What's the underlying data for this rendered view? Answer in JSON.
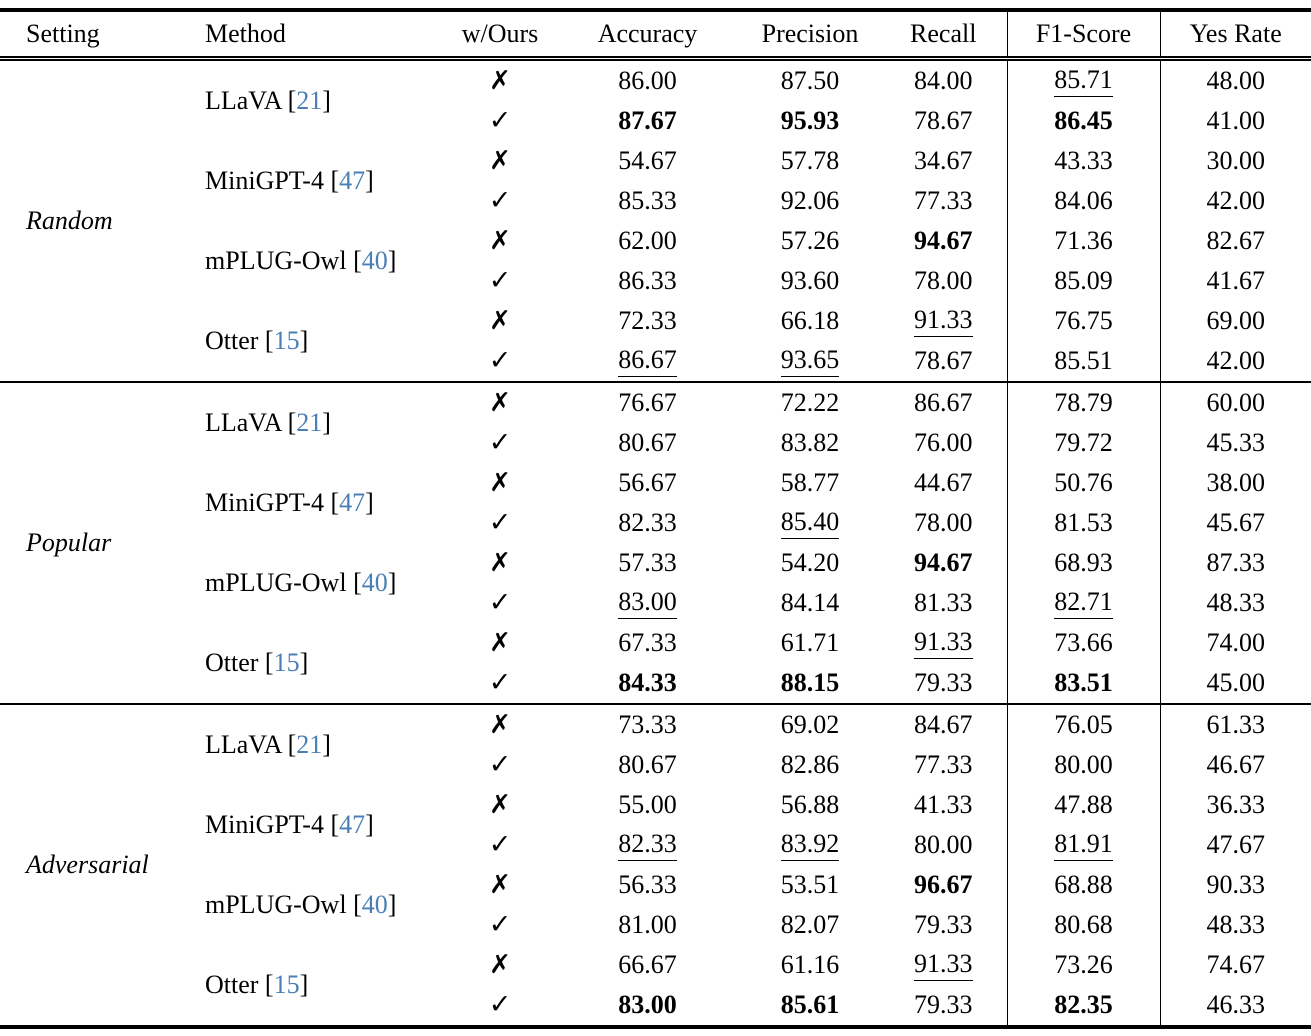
{
  "columns": [
    "Setting",
    "Method",
    "w/Ours",
    "Accuracy",
    "Precision",
    "Recall",
    "F1-Score",
    "Yes Rate"
  ],
  "marks": {
    "cross": "✗",
    "check": "✓"
  },
  "citation_open": "[",
  "citation_close": "]",
  "colors": {
    "citation": "#4a7fb5"
  },
  "sections": [
    {
      "setting": "Random",
      "methods": [
        {
          "name": "LLaVA",
          "cite": "21",
          "rows": [
            {
              "mark": "cross",
              "values": [
                {
                  "v": "86.00"
                },
                {
                  "v": "87.50"
                },
                {
                  "v": "84.00"
                },
                {
                  "v": "85.71",
                  "u": true
                },
                {
                  "v": "48.00"
                }
              ]
            },
            {
              "mark": "check",
              "values": [
                {
                  "v": "87.67",
                  "b": true
                },
                {
                  "v": "95.93",
                  "b": true
                },
                {
                  "v": "78.67"
                },
                {
                  "v": "86.45",
                  "b": true
                },
                {
                  "v": "41.00"
                }
              ]
            }
          ]
        },
        {
          "name": "MiniGPT-4",
          "cite": "47",
          "rows": [
            {
              "mark": "cross",
              "values": [
                {
                  "v": "54.67"
                },
                {
                  "v": "57.78"
                },
                {
                  "v": "34.67"
                },
                {
                  "v": "43.33"
                },
                {
                  "v": "30.00"
                }
              ]
            },
            {
              "mark": "check",
              "values": [
                {
                  "v": "85.33"
                },
                {
                  "v": "92.06"
                },
                {
                  "v": "77.33"
                },
                {
                  "v": "84.06"
                },
                {
                  "v": "42.00"
                }
              ]
            }
          ]
        },
        {
          "name": "mPLUG-Owl",
          "cite": "40",
          "rows": [
            {
              "mark": "cross",
              "values": [
                {
                  "v": "62.00"
                },
                {
                  "v": "57.26"
                },
                {
                  "v": "94.67",
                  "b": true
                },
                {
                  "v": "71.36"
                },
                {
                  "v": "82.67"
                }
              ]
            },
            {
              "mark": "check",
              "values": [
                {
                  "v": "86.33"
                },
                {
                  "v": "93.60"
                },
                {
                  "v": "78.00"
                },
                {
                  "v": "85.09"
                },
                {
                  "v": "41.67"
                }
              ]
            }
          ]
        },
        {
          "name": "Otter",
          "cite": "15",
          "rows": [
            {
              "mark": "cross",
              "values": [
                {
                  "v": "72.33"
                },
                {
                  "v": "66.18"
                },
                {
                  "v": "91.33",
                  "u": true
                },
                {
                  "v": "76.75"
                },
                {
                  "v": "69.00"
                }
              ]
            },
            {
              "mark": "check",
              "values": [
                {
                  "v": "86.67",
                  "u": true
                },
                {
                  "v": "93.65",
                  "u": true
                },
                {
                  "v": "78.67"
                },
                {
                  "v": "85.51"
                },
                {
                  "v": "42.00"
                }
              ]
            }
          ]
        }
      ]
    },
    {
      "setting": "Popular",
      "methods": [
        {
          "name": "LLaVA",
          "cite": "21",
          "rows": [
            {
              "mark": "cross",
              "values": [
                {
                  "v": "76.67"
                },
                {
                  "v": "72.22"
                },
                {
                  "v": "86.67"
                },
                {
                  "v": "78.79"
                },
                {
                  "v": "60.00"
                }
              ]
            },
            {
              "mark": "check",
              "values": [
                {
                  "v": "80.67"
                },
                {
                  "v": "83.82"
                },
                {
                  "v": "76.00"
                },
                {
                  "v": "79.72"
                },
                {
                  "v": "45.33"
                }
              ]
            }
          ]
        },
        {
          "name": "MiniGPT-4",
          "cite": "47",
          "rows": [
            {
              "mark": "cross",
              "values": [
                {
                  "v": "56.67"
                },
                {
                  "v": "58.77"
                },
                {
                  "v": "44.67"
                },
                {
                  "v": "50.76"
                },
                {
                  "v": "38.00"
                }
              ]
            },
            {
              "mark": "check",
              "values": [
                {
                  "v": "82.33"
                },
                {
                  "v": "85.40",
                  "u": true
                },
                {
                  "v": "78.00"
                },
                {
                  "v": "81.53"
                },
                {
                  "v": "45.67"
                }
              ]
            }
          ]
        },
        {
          "name": "mPLUG-Owl",
          "cite": "40",
          "rows": [
            {
              "mark": "cross",
              "values": [
                {
                  "v": "57.33"
                },
                {
                  "v": "54.20"
                },
                {
                  "v": "94.67",
                  "b": true
                },
                {
                  "v": "68.93"
                },
                {
                  "v": "87.33"
                }
              ]
            },
            {
              "mark": "check",
              "values": [
                {
                  "v": "83.00",
                  "u": true
                },
                {
                  "v": "84.14"
                },
                {
                  "v": "81.33"
                },
                {
                  "v": "82.71",
                  "u": true
                },
                {
                  "v": "48.33"
                }
              ]
            }
          ]
        },
        {
          "name": "Otter",
          "cite": "15",
          "rows": [
            {
              "mark": "cross",
              "values": [
                {
                  "v": "67.33"
                },
                {
                  "v": "61.71"
                },
                {
                  "v": "91.33",
                  "u": true
                },
                {
                  "v": "73.66"
                },
                {
                  "v": "74.00"
                }
              ]
            },
            {
              "mark": "check",
              "values": [
                {
                  "v": "84.33",
                  "b": true
                },
                {
                  "v": "88.15",
                  "b": true
                },
                {
                  "v": "79.33"
                },
                {
                  "v": "83.51",
                  "b": true
                },
                {
                  "v": "45.00"
                }
              ]
            }
          ]
        }
      ]
    },
    {
      "setting": "Adversarial",
      "methods": [
        {
          "name": "LLaVA",
          "cite": "21",
          "rows": [
            {
              "mark": "cross",
              "values": [
                {
                  "v": "73.33"
                },
                {
                  "v": "69.02"
                },
                {
                  "v": "84.67"
                },
                {
                  "v": "76.05"
                },
                {
                  "v": "61.33"
                }
              ]
            },
            {
              "mark": "check",
              "values": [
                {
                  "v": "80.67"
                },
                {
                  "v": "82.86"
                },
                {
                  "v": "77.33"
                },
                {
                  "v": "80.00"
                },
                {
                  "v": "46.67"
                }
              ]
            }
          ]
        },
        {
          "name": "MiniGPT-4",
          "cite": "47",
          "rows": [
            {
              "mark": "cross",
              "values": [
                {
                  "v": "55.00"
                },
                {
                  "v": "56.88"
                },
                {
                  "v": "41.33"
                },
                {
                  "v": "47.88"
                },
                {
                  "v": "36.33"
                }
              ]
            },
            {
              "mark": "check",
              "values": [
                {
                  "v": "82.33",
                  "u": true
                },
                {
                  "v": "83.92",
                  "u": true
                },
                {
                  "v": "80.00"
                },
                {
                  "v": "81.91",
                  "u": true
                },
                {
                  "v": "47.67"
                }
              ]
            }
          ]
        },
        {
          "name": "mPLUG-Owl",
          "cite": "40",
          "rows": [
            {
              "mark": "cross",
              "values": [
                {
                  "v": "56.33"
                },
                {
                  "v": "53.51"
                },
                {
                  "v": "96.67",
                  "b": true
                },
                {
                  "v": "68.88"
                },
                {
                  "v": "90.33"
                }
              ]
            },
            {
              "mark": "check",
              "values": [
                {
                  "v": "81.00"
                },
                {
                  "v": "82.07"
                },
                {
                  "v": "79.33"
                },
                {
                  "v": "80.68"
                },
                {
                  "v": "48.33"
                }
              ]
            }
          ]
        },
        {
          "name": "Otter",
          "cite": "15",
          "rows": [
            {
              "mark": "cross",
              "values": [
                {
                  "v": "66.67"
                },
                {
                  "v": "61.16"
                },
                {
                  "v": "91.33",
                  "u": true
                },
                {
                  "v": "73.26"
                },
                {
                  "v": "74.67"
                }
              ]
            },
            {
              "mark": "check",
              "values": [
                {
                  "v": "83.00",
                  "b": true
                },
                {
                  "v": "85.61",
                  "b": true
                },
                {
                  "v": "79.33"
                },
                {
                  "v": "82.35",
                  "b": true
                },
                {
                  "v": "46.33"
                }
              ]
            }
          ]
        }
      ]
    }
  ]
}
